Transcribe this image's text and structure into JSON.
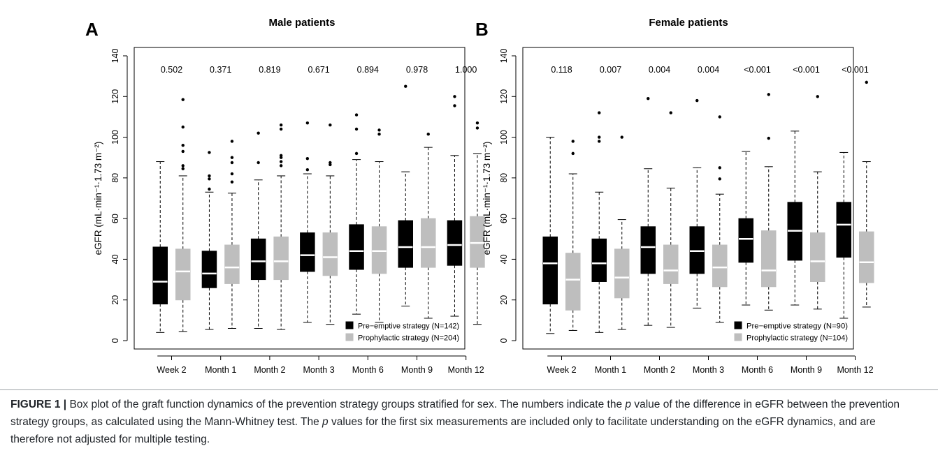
{
  "chart_data": [
    {
      "panel_letter": "A",
      "type": "box",
      "title": "Male patients",
      "ylabel": "eGFR (mL·min⁻¹·1.73 m⁻²)",
      "ylim": [
        0,
        140
      ],
      "yticks": [
        "0",
        "20",
        "40",
        "60",
        "80",
        "100",
        "120",
        "140"
      ],
      "categories": [
        "Week 2",
        "Month 1",
        "Month 2",
        "Month 3",
        "Month 6",
        "Month 9",
        "Month 12"
      ],
      "p_values": [
        "0.502",
        "0.371",
        "0.819",
        "0.671",
        "0.894",
        "0.978",
        "1.000"
      ],
      "legend_position": "bottom-right",
      "series": [
        {
          "name": "Pre−emptive strategy (N=142)",
          "color": "#000000",
          "median_color": "#ffffff",
          "boxes": [
            {
              "whisker_low": 4,
              "q1": 18,
              "median": 29,
              "q3": 46,
              "whisker_high": 88,
              "outliers": []
            },
            {
              "whisker_low": 5.5,
              "q1": 26,
              "median": 33,
              "q3": 44,
              "whisker_high": 73,
              "outliers": [
                74.5,
                79.5,
                81,
                92.5
              ]
            },
            {
              "whisker_low": 6,
              "q1": 30,
              "median": 39,
              "q3": 50,
              "whisker_high": 79,
              "outliers": [
                87.5,
                102
              ]
            },
            {
              "whisker_low": 9,
              "q1": 34,
              "median": 42,
              "q3": 53,
              "whisker_high": 82,
              "outliers": [
                84,
                89.5,
                107
              ]
            },
            {
              "whisker_low": 13,
              "q1": 35,
              "median": 44,
              "q3": 57,
              "whisker_high": 89,
              "outliers": [
                92,
                104,
                111
              ]
            },
            {
              "whisker_low": 17,
              "q1": 36,
              "median": 46,
              "q3": 59,
              "whisker_high": 83,
              "outliers": [
                125
              ]
            },
            {
              "whisker_low": 12,
              "q1": 37,
              "median": 47,
              "q3": 59,
              "whisker_high": 91,
              "outliers": [
                115.5,
                120
              ]
            }
          ]
        },
        {
          "name": "Prophylactic strategy (N=204)",
          "color": "#bebebe",
          "median_color": "#ffffff",
          "boxes": [
            {
              "whisker_low": 4.5,
              "q1": 20,
              "median": 34,
              "q3": 45,
              "whisker_high": 81,
              "outliers": [
                84.5,
                86,
                93,
                96,
                105,
                118.5
              ]
            },
            {
              "whisker_low": 6,
              "q1": 28,
              "median": 36,
              "q3": 47,
              "whisker_high": 72.5,
              "outliers": [
                78,
                82,
                87.5,
                90,
                98
              ]
            },
            {
              "whisker_low": 5.5,
              "q1": 30,
              "median": 39,
              "q3": 51,
              "whisker_high": 81,
              "outliers": [
                86,
                88,
                90,
                91,
                104,
                106
              ]
            },
            {
              "whisker_low": 8,
              "q1": 32,
              "median": 41,
              "q3": 53,
              "whisker_high": 81,
              "outliers": [
                86.5,
                87.5,
                106
              ]
            },
            {
              "whisker_low": 9,
              "q1": 33,
              "median": 44,
              "q3": 56,
              "whisker_high": 88,
              "outliers": [
                101.5,
                103.5
              ]
            },
            {
              "whisker_low": 11,
              "q1": 36,
              "median": 46,
              "q3": 60,
              "whisker_high": 95,
              "outliers": [
                101.5
              ]
            },
            {
              "whisker_low": 8,
              "q1": 36,
              "median": 48,
              "q3": 61,
              "whisker_high": 92,
              "outliers": [
                104.5,
                107
              ]
            }
          ]
        }
      ]
    },
    {
      "panel_letter": "B",
      "type": "box",
      "title": "Female patients",
      "ylabel": "eGFR (mL·min⁻¹·1.73 m⁻²)",
      "ylim": [
        0,
        140
      ],
      "yticks": [
        "0",
        "20",
        "40",
        "60",
        "80",
        "100",
        "120",
        "140"
      ],
      "categories": [
        "Week 2",
        "Month 1",
        "Month 2",
        "Month 3",
        "Month 6",
        "Month 9",
        "Month 12"
      ],
      "p_values": [
        "0.118",
        "0.007",
        "0.004",
        "0.004",
        "<0.001",
        "<0.001",
        "<0.001"
      ],
      "legend_position": "bottom-right",
      "series": [
        {
          "name": "Pre−emptive strategy (N=90)",
          "color": "#000000",
          "median_color": "#ffffff",
          "boxes": [
            {
              "whisker_low": 3.5,
              "q1": 18,
              "median": 38,
              "q3": 51,
              "whisker_high": 100,
              "outliers": []
            },
            {
              "whisker_low": 4,
              "q1": 29,
              "median": 38,
              "q3": 50,
              "whisker_high": 73,
              "outliers": [
                98,
                100,
                112
              ]
            },
            {
              "whisker_low": 7.5,
              "q1": 33,
              "median": 46,
              "q3": 56,
              "whisker_high": 84.5,
              "outliers": [
                119
              ]
            },
            {
              "whisker_low": 16,
              "q1": 33,
              "median": 44,
              "q3": 56,
              "whisker_high": 85,
              "outliers": [
                118
              ]
            },
            {
              "whisker_low": 17.5,
              "q1": 38.5,
              "median": 50,
              "q3": 60,
              "whisker_high": 93,
              "outliers": []
            },
            {
              "whisker_low": 17.5,
              "q1": 39.5,
              "median": 54,
              "q3": 68,
              "whisker_high": 103,
              "outliers": []
            },
            {
              "whisker_low": 11,
              "q1": 41,
              "median": 57,
              "q3": 68,
              "whisker_high": 92.5,
              "outliers": []
            }
          ]
        },
        {
          "name": "Prophylactic strategy (N=104)",
          "color": "#bebebe",
          "median_color": "#ffffff",
          "boxes": [
            {
              "whisker_low": 5,
              "q1": 15,
              "median": 30,
              "q3": 43,
              "whisker_high": 82,
              "outliers": [
                92,
                98
              ]
            },
            {
              "whisker_low": 5.5,
              "q1": 21,
              "median": 31,
              "q3": 45,
              "whisker_high": 59.5,
              "outliers": [
                100
              ]
            },
            {
              "whisker_low": 6.5,
              "q1": 28,
              "median": 34.5,
              "q3": 47,
              "whisker_high": 75,
              "outliers": [
                112
              ]
            },
            {
              "whisker_low": 9,
              "q1": 26.5,
              "median": 36,
              "q3": 47,
              "whisker_high": 72,
              "outliers": [
                79.5,
                85,
                110
              ]
            },
            {
              "whisker_low": 15,
              "q1": 26.5,
              "median": 34.5,
              "q3": 54,
              "whisker_high": 85.5,
              "outliers": [
                99.5,
                121
              ]
            },
            {
              "whisker_low": 15.5,
              "q1": 29,
              "median": 39,
              "q3": 53,
              "whisker_high": 83,
              "outliers": [
                120
              ]
            },
            {
              "whisker_low": 16.5,
              "q1": 28.5,
              "median": 38.5,
              "q3": 53.5,
              "whisker_high": 88,
              "outliers": [
                127
              ]
            }
          ]
        }
      ]
    }
  ],
  "caption": {
    "label": "FIGURE 1 |",
    "part1": " Box plot of the graft function dynamics of the prevention strategy groups stratified for sex. The numbers indicate the ",
    "p1": "p",
    "part2": " value of the difference in eGFR between the prevention strategy groups, as calculated using the Mann-Whitney test. The ",
    "p2": "p",
    "part3": " values for the first six measurements are included only to facilitate understanding on the eGFR dynamics, and are therefore not adjusted for multiple testing."
  }
}
